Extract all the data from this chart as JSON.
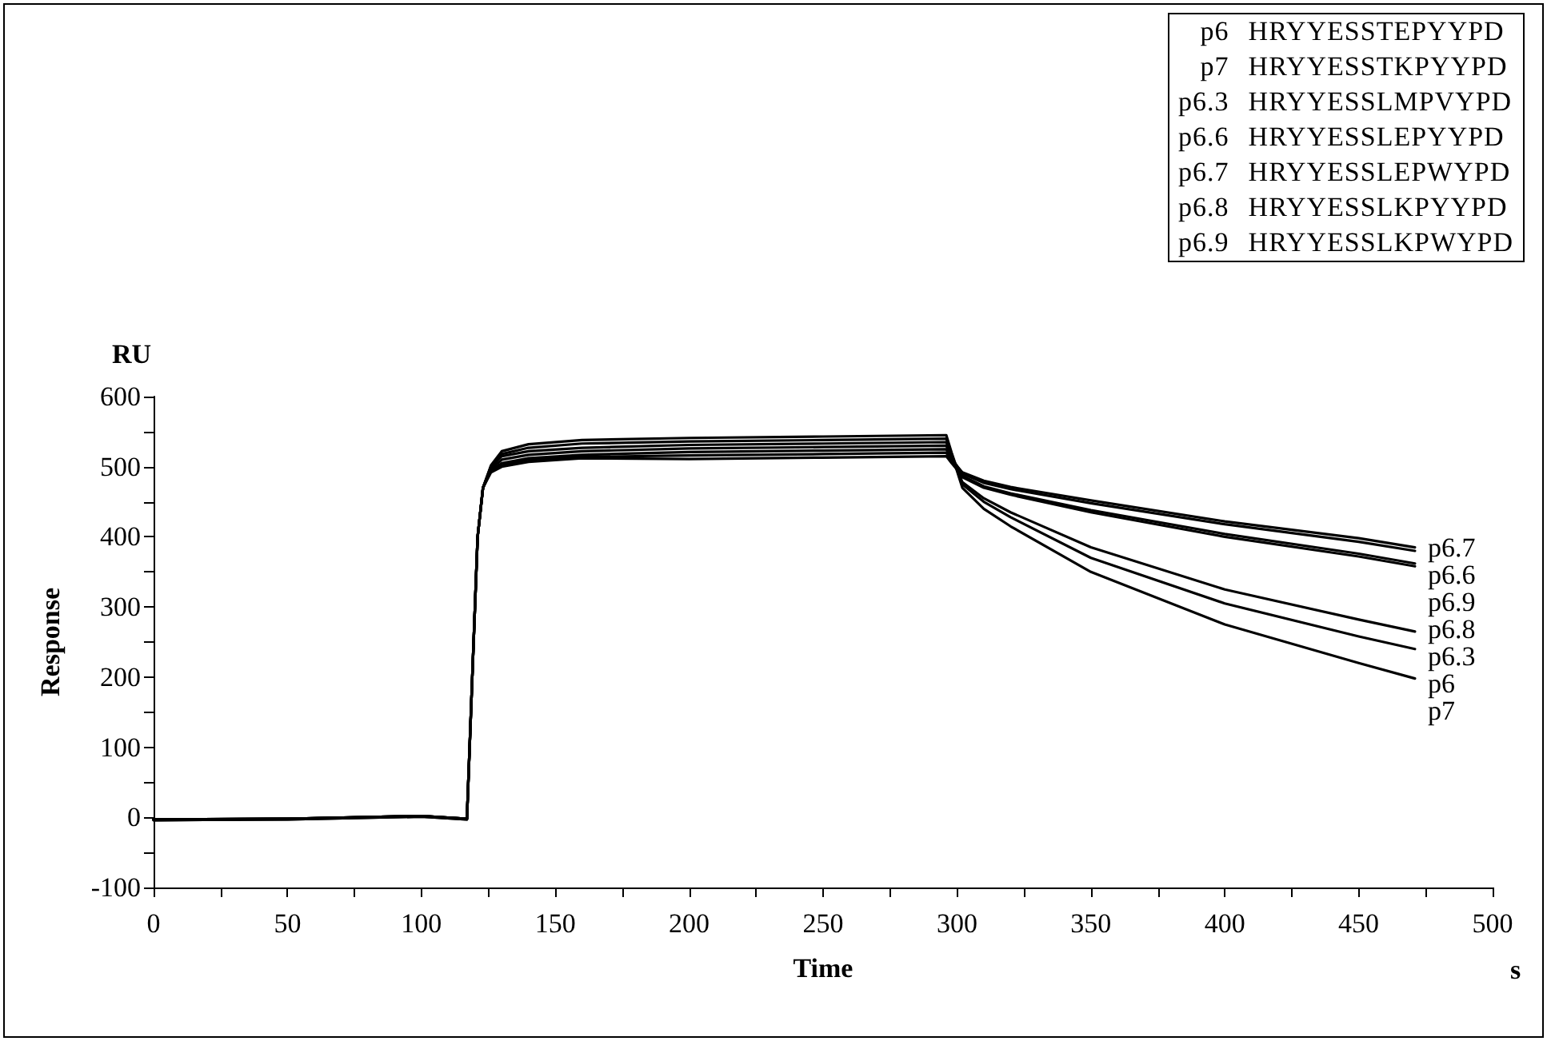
{
  "chart_data": {
    "type": "line",
    "xlabel": "Time",
    "ylabel": "Response",
    "annotations": [
      "RU",
      "s",
      "p6 HRYYESSTEPYYPD",
      "p7 HRYYESSTKPYYPD",
      "p6.3 HRYYESSLMPVYPD",
      "p6.6 HRYYESSLEPYYPD",
      "p6.7 HRYYESSLEPWYPD",
      "p6.8 HRYYESSLKPYYPD",
      "p6.9 HRYYESSLKPWYPD"
    ],
    "x": [
      0,
      50,
      100,
      117,
      119,
      121,
      123,
      126,
      130,
      140,
      160,
      200,
      250,
      296,
      298,
      302,
      310,
      320,
      350,
      400,
      450,
      471
    ],
    "series": [
      {
        "name": "p6.7",
        "color": "#000000",
        "values": [
          -3,
          -2,
          2,
          -2,
          200,
          400,
          470,
          495,
          505,
          512,
          517,
          521,
          523,
          525,
          510,
          492,
          480,
          471,
          452,
          422,
          398,
          385
        ]
      },
      {
        "name": "p6.6",
        "color": "#000000",
        "values": [
          -3,
          -2,
          2,
          -2,
          200,
          400,
          470,
          497,
          510,
          517,
          522,
          526,
          528,
          530,
          512,
          490,
          477,
          468,
          448,
          418,
          393,
          380
        ]
      },
      {
        "name": "p6.9",
        "color": "#000000",
        "values": [
          -4,
          -3,
          1,
          -3,
          200,
          400,
          470,
          492,
          500,
          507,
          512,
          511,
          513,
          515,
          505,
          487,
          472,
          462,
          438,
          404,
          376,
          362
        ]
      },
      {
        "name": "p6.8",
        "color": "#000000",
        "values": [
          -4,
          -3,
          1,
          -3,
          200,
          400,
          470,
          494,
          502,
          510,
          514,
          516,
          518,
          520,
          507,
          485,
          470,
          460,
          435,
          400,
          372,
          358
        ]
      },
      {
        "name": "p6.3",
        "color": "#000000",
        "values": [
          -3,
          -2,
          2,
          -2,
          200,
          400,
          470,
          500,
          515,
          522,
          527,
          531,
          533,
          535,
          515,
          478,
          455,
          435,
          385,
          325,
          282,
          265
        ]
      },
      {
        "name": "p6",
        "color": "#000000",
        "values": [
          -3,
          -2,
          2,
          -2,
          200,
          400,
          470,
          502,
          522,
          532,
          538,
          541,
          543,
          545,
          520,
          475,
          450,
          428,
          370,
          305,
          258,
          240
        ]
      },
      {
        "name": "p7",
        "color": "#000000",
        "values": [
          -3,
          -2,
          2,
          -2,
          200,
          400,
          470,
          501,
          518,
          527,
          533,
          536,
          538,
          540,
          518,
          470,
          440,
          415,
          350,
          275,
          220,
          198
        ]
      }
    ],
    "xlim": [
      0,
      500
    ],
    "xticks": [
      0,
      50,
      100,
      150,
      200,
      250,
      300,
      350,
      400,
      450,
      500
    ],
    "ylim": [
      -100,
      600
    ],
    "yticks": [
      -100,
      0,
      100,
      200,
      300,
      400,
      500,
      600
    ],
    "grid": false,
    "legend": false,
    "marker": "none",
    "line_style": "solid"
  }
}
